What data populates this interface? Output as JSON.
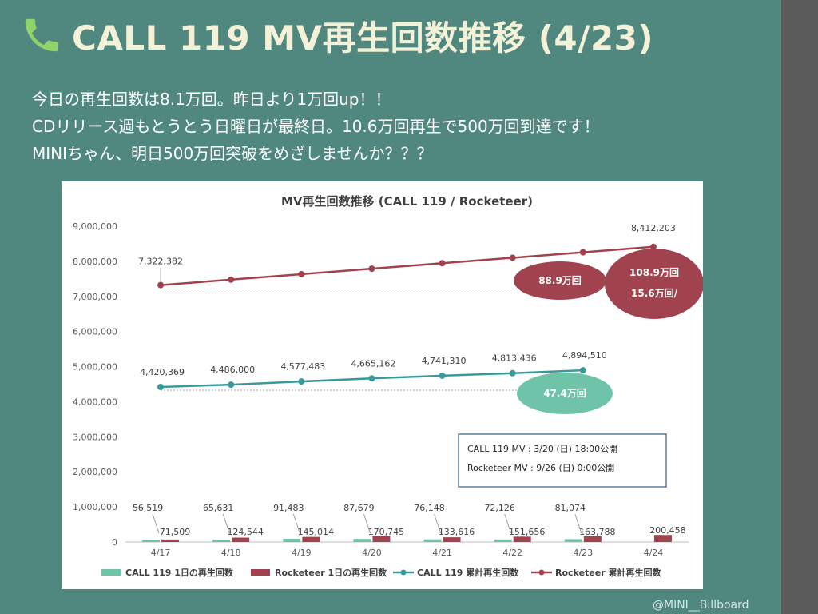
{
  "header": {
    "title": "CALL 119 MV再生回数推移 (4/23)"
  },
  "message": {
    "line1": "今日の再生回数は8.1万回。昨日より1万回up！！",
    "line2": "CDリリース週もとうとう日曜日が最終日。10.6万回再生で500万回到達です！",
    "line3": "MINIちゃん、明日500万回突破をめざしませんか？？？"
  },
  "colors": {
    "background": "#50877e",
    "title": "#f3f1d7",
    "call119": "#3a9a9a",
    "call119_daily": "#6fc3a8",
    "rocketeer": "#a0434e",
    "annotation_green": "#6fc3a8",
    "annotation_red": "#a0434e"
  },
  "icons": {
    "header": "phone-icon"
  },
  "chart_data": {
    "type": "bar",
    "title": "MV再生回数推移 (CALL 119 / Rocketeer)",
    "categories": [
      "4/17",
      "4/18",
      "4/19",
      "4/20",
      "4/21",
      "4/22",
      "4/23",
      "4/24"
    ],
    "ylim": [
      0,
      9000000
    ],
    "yticks": [
      0,
      1000000,
      2000000,
      3000000,
      4000000,
      5000000,
      6000000,
      7000000,
      8000000,
      9000000
    ],
    "ytick_labels": [
      "0",
      "1,000,000",
      "2,000,000",
      "3,000,000",
      "4,000,000",
      "5,000,000",
      "6,000,000",
      "7,000,000",
      "8,000,000",
      "9,000,000"
    ],
    "grid": false,
    "legend_position": "bottom",
    "bar_series": [
      {
        "name": "CALL 119 1日の再生回数",
        "color": "#6fc3a8",
        "values": [
          56519,
          65631,
          91483,
          87679,
          76148,
          72126,
          81074,
          null
        ],
        "labels": [
          "56,519",
          "65,631",
          "91,483",
          "87,679",
          "76,148",
          "72,126",
          "81,074",
          ""
        ]
      },
      {
        "name": "Rocketeer 1日の再生回数",
        "color": "#a0434e",
        "values": [
          71509,
          124544,
          145014,
          170745,
          133616,
          151656,
          163788,
          200458
        ],
        "labels": [
          "71,509",
          "124,544",
          "145,014",
          "170,745",
          "133,616",
          "151,656",
          "163,788",
          "200,458"
        ]
      }
    ],
    "line_series": [
      {
        "name": "CALL 119 累計再生回数",
        "color": "#3a9a9a",
        "values": [
          4420369,
          4486000,
          4577483,
          4665162,
          4741310,
          4813436,
          4894510,
          null
        ],
        "labels": [
          "4,420,369",
          "4,486,000",
          "4,577,483",
          "4,665,162",
          "4,741,310",
          "4,813,436",
          "4,894,510",
          ""
        ]
      },
      {
        "name": "Rocketeer 累計再生回数",
        "color": "#a0434e",
        "values": [
          7322382,
          null,
          null,
          null,
          null,
          null,
          null,
          8412203
        ],
        "interpolate": true,
        "labels": [
          "7,322,382",
          "",
          "",
          "",
          "",
          "",
          "",
          "8,412,203"
        ]
      }
    ],
    "annotations": [
      {
        "text": "88.9万回",
        "style": "red-ellipse"
      },
      {
        "text1": "108.9万回",
        "text2": "15.6万回/",
        "style": "red-ellipse-large"
      },
      {
        "text": "47.4万回",
        "style": "green-ellipse"
      }
    ],
    "info_box": {
      "line1": "CALL 119 MV : 3/20 (日) 18:00公開",
      "line2": "Rocketeer MV : 9/26 (日) 0:00公開"
    }
  },
  "watermark": "@MINI__Billboard"
}
